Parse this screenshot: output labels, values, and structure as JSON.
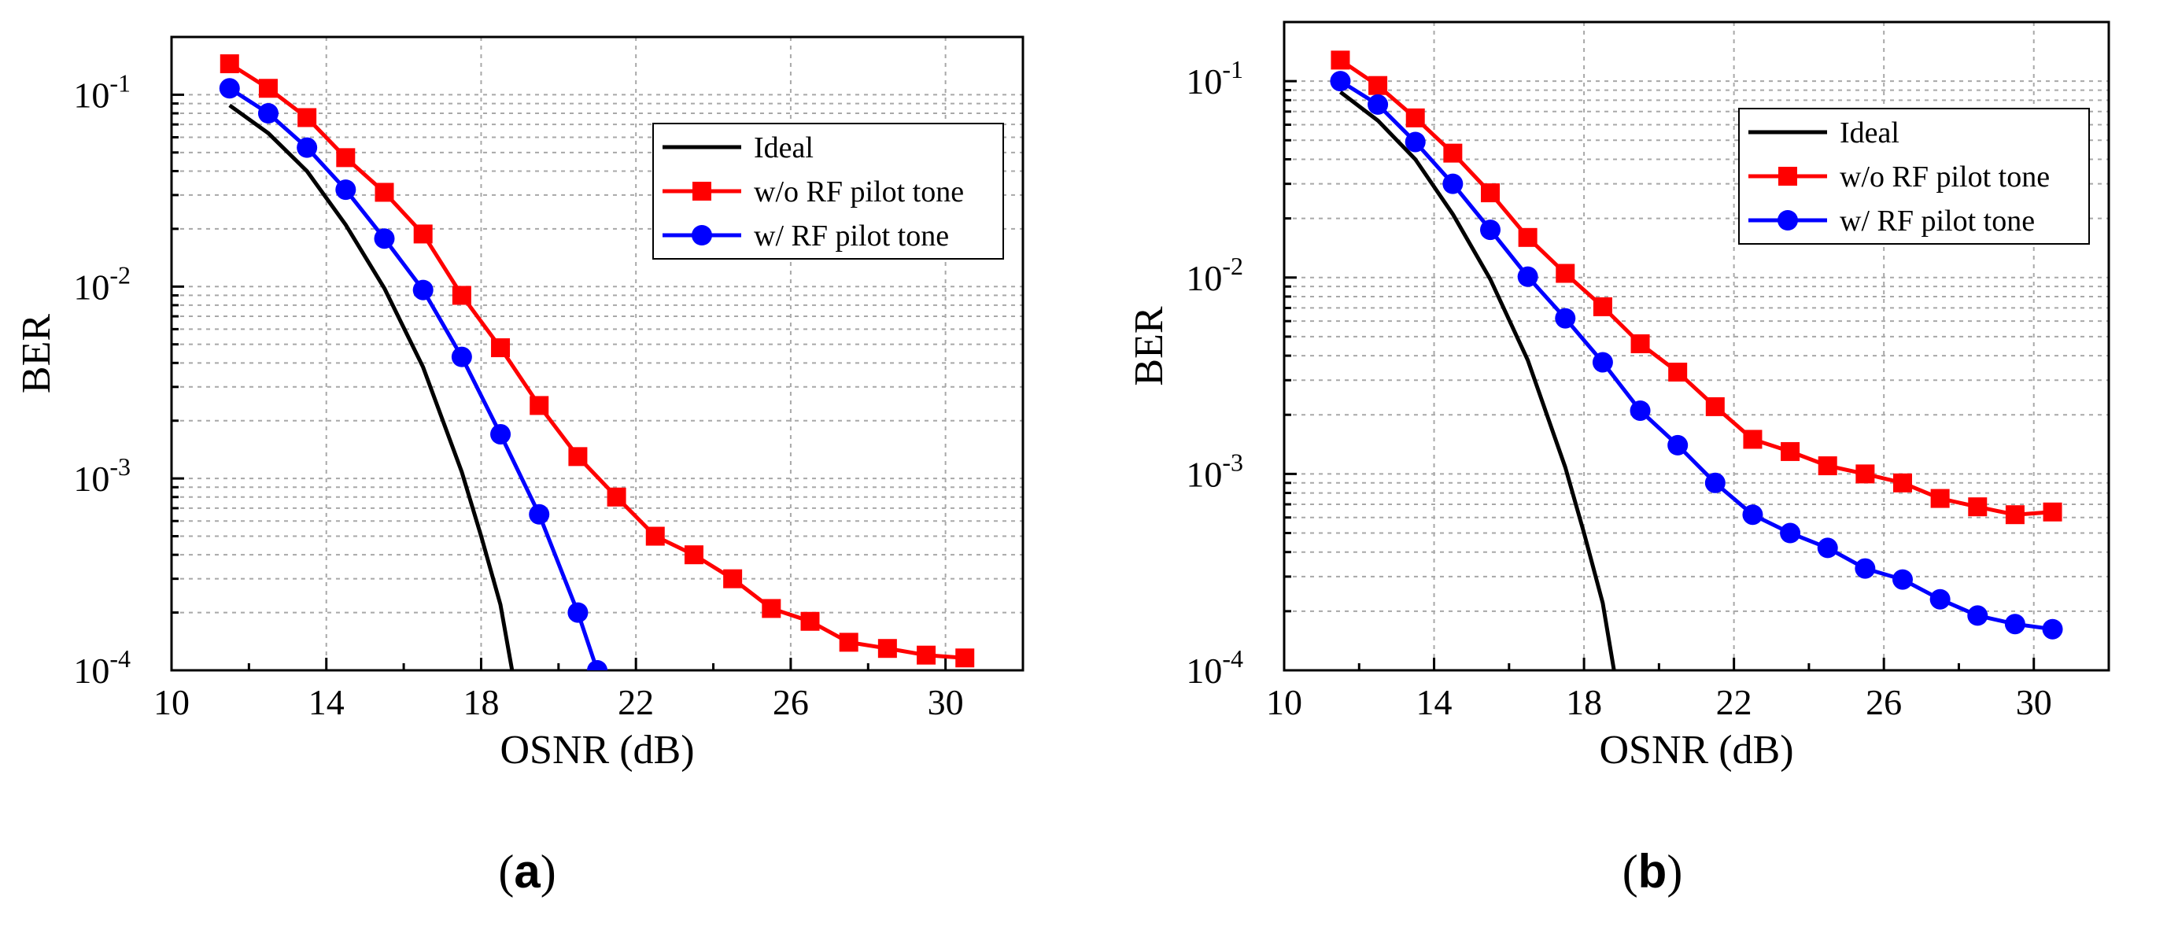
{
  "chart_data": [
    {
      "type": "line",
      "panel_label": "a",
      "title": "",
      "xlabel": "OSNR (dB)",
      "ylabel": "BER",
      "xlim": [
        10,
        32
      ],
      "ylim": [
        0.0001,
        0.2
      ],
      "yscale": "log",
      "xticks": [
        10,
        14,
        18,
        22,
        26,
        30
      ],
      "yticks": [
        {
          "value": 0.1,
          "base": "10",
          "exp": "-1"
        },
        {
          "value": 0.01,
          "base": "10",
          "exp": "-2"
        },
        {
          "value": 0.001,
          "base": "10",
          "exp": "-3"
        },
        {
          "value": 0.0001,
          "base": "10",
          "exp": "-4"
        }
      ],
      "grid": true,
      "legend_position": "top-right",
      "series": [
        {
          "name": "Ideal",
          "color": "#000000",
          "marker": "none",
          "x": [
            11.5,
            12.5,
            13.5,
            14.5,
            15.5,
            16.5,
            17.5,
            18.0,
            18.5,
            18.8
          ],
          "y": [
            0.088,
            0.063,
            0.04,
            0.021,
            0.0098,
            0.0038,
            0.00108,
            0.0005,
            0.00022,
            0.0001
          ]
        },
        {
          "name": "w/o RF pilot tone",
          "color": "#ff0000",
          "marker": "square",
          "x": [
            11.5,
            12.5,
            13.5,
            14.5,
            15.5,
            16.5,
            17.5,
            18.5,
            19.5,
            20.5,
            21.5,
            22.5,
            23.5,
            24.5,
            25.5,
            26.5,
            27.5,
            28.5,
            29.5,
            30.5
          ],
          "y": [
            0.145,
            0.108,
            0.076,
            0.047,
            0.031,
            0.0188,
            0.009,
            0.0048,
            0.0024,
            0.0013,
            0.0008,
            0.0005,
            0.0004,
            0.0003,
            0.00021,
            0.00018,
            0.00014,
            0.00013,
            0.00012,
            0.000116
          ]
        },
        {
          "name": "w/ RF pilot tone",
          "color": "#0000ff",
          "marker": "circle",
          "x": [
            11.5,
            12.5,
            13.5,
            14.5,
            15.5,
            16.5,
            17.5,
            18.5,
            19.5,
            20.5,
            21.0
          ],
          "y": [
            0.108,
            0.08,
            0.053,
            0.032,
            0.0178,
            0.0096,
            0.0043,
            0.0017,
            0.00065,
            0.0002,
            0.0001
          ]
        }
      ]
    },
    {
      "type": "line",
      "panel_label": "b",
      "title": "",
      "xlabel": "OSNR (dB)",
      "ylabel": "BER",
      "xlim": [
        10,
        32
      ],
      "ylim": [
        0.0001,
        0.2
      ],
      "yscale": "log",
      "xticks": [
        10,
        14,
        18,
        22,
        26,
        30
      ],
      "yticks": [
        {
          "value": 0.1,
          "base": "10",
          "exp": "-1"
        },
        {
          "value": 0.01,
          "base": "10",
          "exp": "-2"
        },
        {
          "value": 0.001,
          "base": "10",
          "exp": "-3"
        },
        {
          "value": 0.0001,
          "base": "10",
          "exp": "-4"
        }
      ],
      "grid": true,
      "legend_position": "top-right",
      "series": [
        {
          "name": "Ideal",
          "color": "#000000",
          "marker": "none",
          "x": [
            11.5,
            12.5,
            13.5,
            14.5,
            15.5,
            16.5,
            17.5,
            18.0,
            18.5,
            18.8
          ],
          "y": [
            0.088,
            0.063,
            0.04,
            0.021,
            0.0098,
            0.0038,
            0.00108,
            0.0005,
            0.00022,
            0.0001
          ]
        },
        {
          "name": "w/o RF pilot tone",
          "color": "#ff0000",
          "marker": "square",
          "x": [
            11.5,
            12.5,
            13.5,
            14.5,
            15.5,
            16.5,
            17.5,
            18.5,
            19.5,
            20.5,
            21.5,
            22.5,
            23.5,
            24.5,
            25.5,
            26.5,
            27.5,
            28.5,
            29.5,
            30.5
          ],
          "y": [
            0.128,
            0.095,
            0.065,
            0.043,
            0.027,
            0.016,
            0.0105,
            0.0071,
            0.0046,
            0.0033,
            0.0022,
            0.0015,
            0.0013,
            0.0011,
            0.001,
            0.0009,
            0.00075,
            0.00068,
            0.00062,
            0.00064
          ]
        },
        {
          "name": "w/ RF pilot tone",
          "color": "#0000ff",
          "marker": "circle",
          "x": [
            11.5,
            12.5,
            13.5,
            14.5,
            15.5,
            16.5,
            17.5,
            18.5,
            19.5,
            20.5,
            21.5,
            22.5,
            23.5,
            24.5,
            25.5,
            26.5,
            27.5,
            28.5,
            29.5,
            30.5
          ],
          "y": [
            0.1,
            0.076,
            0.049,
            0.03,
            0.0175,
            0.0101,
            0.0062,
            0.0037,
            0.0021,
            0.0014,
            0.0009,
            0.00062,
            0.0005,
            0.00042,
            0.00033,
            0.00029,
            0.00023,
            0.00019,
            0.000172,
            0.000162
          ]
        }
      ]
    }
  ]
}
